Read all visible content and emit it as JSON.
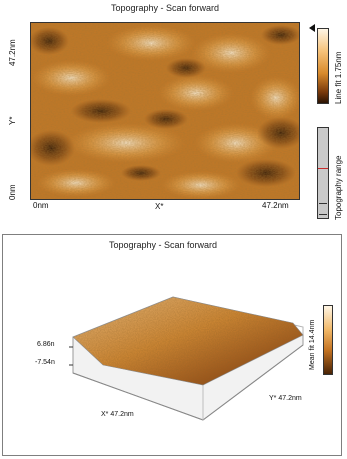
{
  "top_view": {
    "title": "Topography - Scan forward",
    "y_axis": {
      "label": "Y*",
      "top_tick": "47.2nm",
      "bottom_tick": "0nm"
    },
    "x_axis": {
      "label": "X*",
      "left_tick": "0nm",
      "right_tick": "47.2nm"
    },
    "colorbar_label": "Line fit 1.75nm",
    "range_label": "Topography range",
    "colors": {
      "low": "#2a1304",
      "mid": "#d88a2c",
      "high": "#fff6e6"
    }
  },
  "bottom_view": {
    "title": "Topography - Scan forward",
    "z_ticks": {
      "top": "6.86n",
      "bottom": "-7.54n"
    },
    "x_label": "X* 47.2nm",
    "y_label": "Y* 47.2nm",
    "colorbar_label": "Mean fit 14.4nm"
  }
}
